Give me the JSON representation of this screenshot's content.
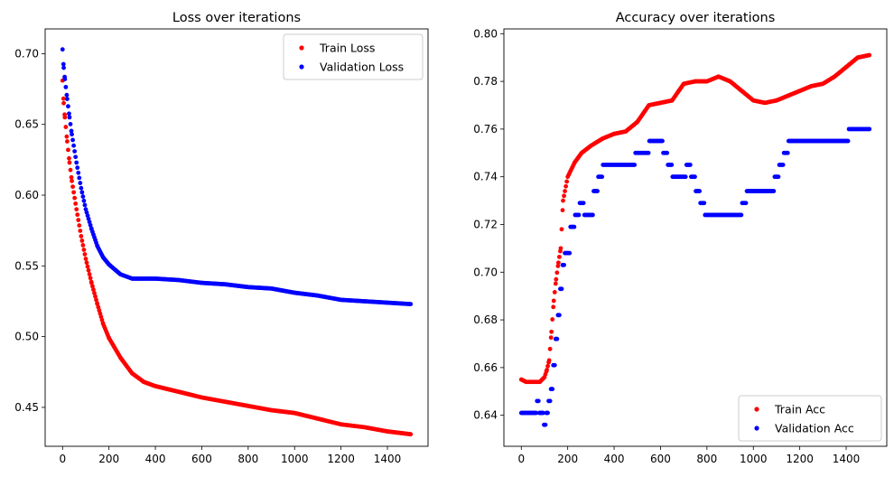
{
  "chart_data": [
    {
      "type": "scatter",
      "title": "Loss over iterations",
      "xlabel": "",
      "ylabel": "",
      "xlim": [
        -75,
        1575
      ],
      "ylim": [
        0.4225,
        0.7175
      ],
      "xticks": [
        0,
        200,
        400,
        600,
        800,
        1000,
        1200,
        1400
      ],
      "yticks": [
        0.45,
        0.5,
        0.55,
        0.6,
        0.65,
        0.7
      ],
      "tick_decimals": 2,
      "legend": {
        "position": "top-right"
      },
      "grid": false,
      "series": [
        {
          "name": "Train Loss",
          "color": "#ff0000",
          "x": [
            0,
            5,
            10,
            20,
            30,
            40,
            60,
            80,
            100,
            125,
            150,
            175,
            200,
            250,
            300,
            350,
            400,
            500,
            600,
            700,
            800,
            900,
            1000,
            1100,
            1200,
            1300,
            1400,
            1500
          ],
          "y": [
            0.681,
            0.665,
            0.655,
            0.638,
            0.623,
            0.61,
            0.59,
            0.571,
            0.555,
            0.538,
            0.523,
            0.509,
            0.499,
            0.485,
            0.474,
            0.468,
            0.465,
            0.461,
            0.457,
            0.454,
            0.451,
            0.448,
            0.446,
            0.442,
            0.438,
            0.436,
            0.433,
            0.431
          ]
        },
        {
          "name": "Validation Loss",
          "color": "#0000ff",
          "x": [
            0,
            5,
            10,
            20,
            30,
            40,
            60,
            80,
            100,
            125,
            150,
            175,
            200,
            250,
            300,
            350,
            400,
            500,
            600,
            700,
            800,
            900,
            1000,
            1100,
            1200,
            1300,
            1400,
            1500
          ],
          "y": [
            0.703,
            0.69,
            0.682,
            0.668,
            0.655,
            0.643,
            0.623,
            0.605,
            0.59,
            0.576,
            0.564,
            0.556,
            0.551,
            0.544,
            0.541,
            0.541,
            0.541,
            0.54,
            0.538,
            0.537,
            0.535,
            0.534,
            0.531,
            0.529,
            0.526,
            0.525,
            0.524,
            0.523
          ]
        }
      ]
    },
    {
      "type": "scatter",
      "title": "Accuracy over iterations",
      "xlabel": "",
      "ylabel": "",
      "xlim": [
        -75,
        1575
      ],
      "ylim": [
        0.627,
        0.802
      ],
      "xticks": [
        0,
        200,
        400,
        600,
        800,
        1000,
        1200,
        1400
      ],
      "yticks": [
        0.64,
        0.66,
        0.68,
        0.7,
        0.72,
        0.74,
        0.76,
        0.78,
        0.8
      ],
      "tick_decimals": 2,
      "legend": {
        "position": "bottom-right"
      },
      "grid": false,
      "series": [
        {
          "name": "Train Acc",
          "color": "#ff0000",
          "x": [
            0,
            20,
            50,
            80,
            100,
            110,
            120,
            130,
            140,
            150,
            160,
            170,
            180,
            200,
            230,
            260,
            300,
            350,
            400,
            450,
            500,
            550,
            600,
            650,
            700,
            750,
            800,
            850,
            900,
            950,
            1000,
            1050,
            1100,
            1150,
            1200,
            1250,
            1300,
            1350,
            1400,
            1450,
            1500
          ],
          "y": [
            0.655,
            0.654,
            0.654,
            0.654,
            0.656,
            0.659,
            0.663,
            0.675,
            0.688,
            0.697,
            0.704,
            0.71,
            0.73,
            0.74,
            0.746,
            0.75,
            0.753,
            0.756,
            0.758,
            0.759,
            0.763,
            0.77,
            0.771,
            0.772,
            0.779,
            0.78,
            0.78,
            0.782,
            0.78,
            0.776,
            0.772,
            0.771,
            0.772,
            0.774,
            0.776,
            0.778,
            0.779,
            0.782,
            0.786,
            0.79,
            0.791
          ]
        },
        {
          "name": "Validation Acc",
          "color": "#0000ff",
          "x": [
            0,
            20,
            40,
            60,
            70,
            80,
            90,
            100,
            110,
            120,
            130,
            140,
            150,
            160,
            170,
            180,
            190,
            200,
            220,
            240,
            260,
            280,
            300,
            320,
            340,
            360,
            380,
            400,
            420,
            440,
            460,
            480,
            500,
            520,
            540,
            560,
            580,
            600,
            620,
            640,
            660,
            680,
            700,
            720,
            740,
            760,
            780,
            800,
            820,
            840,
            860,
            880,
            900,
            920,
            940,
            960,
            980,
            1000,
            1020,
            1040,
            1060,
            1080,
            1100,
            1120,
            1140,
            1160,
            1180,
            1200,
            1220,
            1240,
            1260,
            1280,
            1300,
            1320,
            1340,
            1360,
            1380,
            1400,
            1420,
            1440,
            1460,
            1480,
            1500
          ],
          "y": [
            0.641,
            0.641,
            0.641,
            0.641,
            0.646,
            0.641,
            0.641,
            0.636,
            0.641,
            0.646,
            0.651,
            0.661,
            0.672,
            0.682,
            0.693,
            0.703,
            0.708,
            0.708,
            0.719,
            0.724,
            0.729,
            0.724,
            0.724,
            0.734,
            0.74,
            0.745,
            0.745,
            0.745,
            0.745,
            0.745,
            0.745,
            0.745,
            0.75,
            0.75,
            0.75,
            0.755,
            0.755,
            0.755,
            0.75,
            0.745,
            0.74,
            0.74,
            0.74,
            0.745,
            0.74,
            0.734,
            0.729,
            0.724,
            0.724,
            0.724,
            0.724,
            0.724,
            0.724,
            0.724,
            0.724,
            0.729,
            0.734,
            0.734,
            0.734,
            0.734,
            0.734,
            0.734,
            0.74,
            0.745,
            0.75,
            0.755,
            0.755,
            0.755,
            0.755,
            0.755,
            0.755,
            0.755,
            0.755,
            0.755,
            0.755,
            0.755,
            0.755,
            0.755,
            0.76,
            0.76,
            0.76,
            0.76,
            0.76
          ]
        }
      ]
    }
  ]
}
